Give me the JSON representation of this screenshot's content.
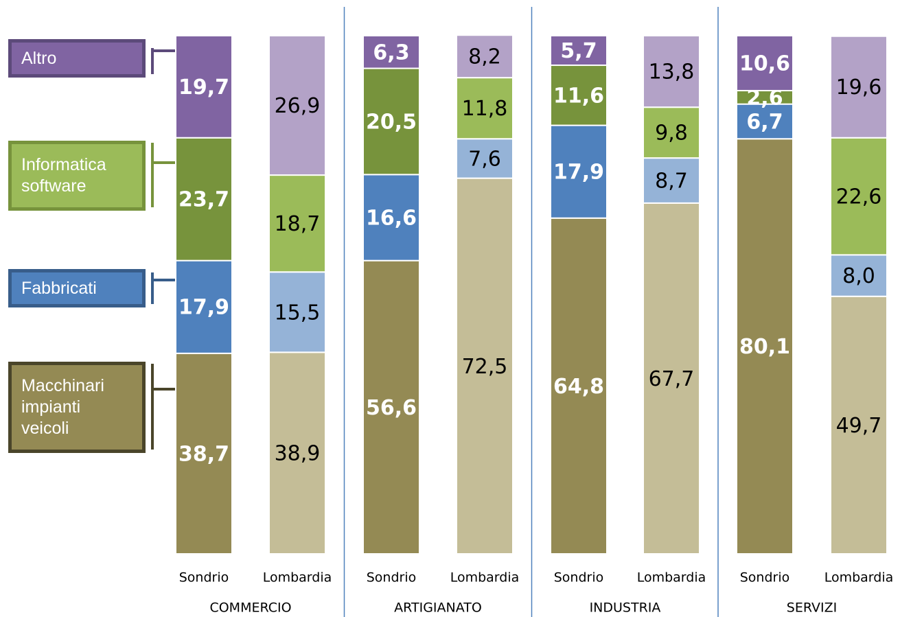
{
  "chart_data": {
    "type": "stacked_bar",
    "groups": [
      "COMMERCIO",
      "ARTIGIANATO",
      "INDUSTRIA",
      "SERVIZI"
    ],
    "categories": [
      "Sondrio",
      "Lombardia",
      "Sondrio",
      "Lombardia",
      "Sondrio",
      "Lombardia",
      "Sondrio",
      "Lombardia"
    ],
    "ylim": [
      0,
      100
    ],
    "series": [
      {
        "name": "Macchinari impianti veicoli",
        "color": "#948a54",
        "light_color": "#c4bd97",
        "border_color": "#4a452a",
        "values": [
          38.7,
          38.9,
          56.6,
          72.5,
          64.8,
          67.7,
          80.1,
          49.7
        ],
        "value_labels": [
          "38,7",
          "38,9",
          "56,6",
          "72,5",
          "64,8",
          "67,7",
          "80,1",
          "49,7"
        ]
      },
      {
        "name": "Fabbricati",
        "color": "#4f81bd",
        "light_color": "#95b3d7",
        "border_color": "#385d8a",
        "values": [
          17.9,
          15.5,
          16.6,
          7.6,
          17.9,
          8.7,
          6.7,
          8.0
        ],
        "value_labels": [
          "17,9",
          "15,5",
          "16,6",
          "7,6",
          "17,9",
          "8,7",
          "6,7",
          "8,0"
        ]
      },
      {
        "name": "Informatica software",
        "color": "#77933c",
        "light_color": "#9bbb59",
        "border_color": "#77933c",
        "values": [
          23.7,
          18.7,
          20.5,
          11.8,
          11.6,
          9.8,
          2.6,
          22.6
        ],
        "value_labels": [
          "23,7",
          "18,7",
          "20,5",
          "11,8",
          "11,6",
          "9,8",
          "2,6",
          "22,6"
        ]
      },
      {
        "name": "Altro",
        "color": "#8064a2",
        "light_color": "#b3a2c7",
        "border_color": "#5c4a7a",
        "values": [
          19.7,
          26.9,
          6.3,
          8.2,
          5.7,
          13.8,
          10.6,
          19.6
        ],
        "value_labels": [
          "19,7",
          "26,9",
          "6,3",
          "8,2",
          "5,7",
          "13,8",
          "10,6",
          "19,6"
        ]
      }
    ]
  }
}
